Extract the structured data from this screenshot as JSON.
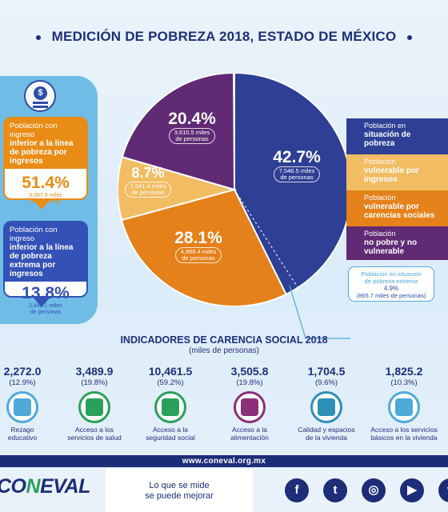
{
  "title": "MEDICIÓN DE POBREZA 2018, ESTADO DE MÉXICO",
  "left_cards": [
    {
      "label_pre": "Población con ingreso",
      "label_bold": "inferior a la línea de pobreza por ingresos",
      "pct": "51.4%",
      "sub1": "9,087.9 miles",
      "sub2": "de personas",
      "color": "#e98c16"
    },
    {
      "label_pre": "Población con ingreso",
      "label_bold": "inferior a la línea de pobreza extrema por ingresos",
      "pct": "13.8%",
      "sub1": "2,443.1 miles",
      "sub2": "de personas",
      "color": "#3451b7"
    }
  ],
  "pie": {
    "slices": [
      {
        "pct": "42.7%",
        "value": 42.7,
        "sub1": "7,546.5 miles",
        "sub2": "de personas",
        "color": "#2e3f95"
      },
      {
        "pct": "28.1%",
        "value": 28.1,
        "sub1": "4,968.4 miles",
        "sub2": "de personas",
        "color": "#e5811a"
      },
      {
        "pct": "8.7%",
        "value": 8.7,
        "sub1": "1,541.4 miles",
        "sub2": "de personas",
        "color": "#f2bc63"
      },
      {
        "pct": "20.4%",
        "value": 20.4,
        "sub1": "3,610.5 miles",
        "sub2": "de personas",
        "color": "#602a74"
      }
    ]
  },
  "legend": [
    {
      "pre": "Población en",
      "bold": "situación de pobreza"
    },
    {
      "pre": "Población",
      "bold": "vulnerable por ingresos"
    },
    {
      "pre": "Población",
      "bold": "vulnerable por carencias sociales"
    },
    {
      "pre": "Población",
      "bold": "no pobre y no vulnerable"
    }
  ],
  "callout": {
    "line1": "Población en situación",
    "line2": "de pobreza extrema",
    "pct": "4.9%",
    "miles": "(865.7 miles de personas)"
  },
  "indicators_title": "INDICADORES DE CARENCIA SOCIAL 2018",
  "indicators_sub": "(miles de personas)",
  "indicators": [
    {
      "value": "2,272.0",
      "pct": "(12.9%)",
      "label1": "Rezago",
      "label2": "educativo",
      "color": "#4fa9d9"
    },
    {
      "value": "3,489.9",
      "pct": "(19.8%)",
      "label1": "Acceso a los",
      "label2": "servicios de salud",
      "color": "#2aa05a"
    },
    {
      "value": "10,461.5",
      "pct": "(59.2%)",
      "label1": "Acceso a la",
      "label2": "seguridad social",
      "color": "#2aa05a"
    },
    {
      "value": "3,505.8",
      "pct": "(19.8%)",
      "label1": "Acceso a la",
      "label2": "alimentación",
      "color": "#8b2f7a"
    },
    {
      "value": "1,704.5",
      "pct": "(9.6%)",
      "label1": "Calidad y espacios",
      "label2": "de la vivienda",
      "color": "#2e8fb8"
    },
    {
      "value": "1,825.2",
      "pct": "(10.3%)",
      "label1": "Acceso a los servicios",
      "label2": "básicos en la vivienda",
      "color": "#4fa9d9"
    }
  ],
  "url": "www.coneval.org.mx",
  "brand": {
    "a": "CO",
    "n": "N",
    "b": "EVAL"
  },
  "slogan1": "Lo que se mide",
  "slogan2": "se puede mejorar",
  "social": [
    {
      "icon": "facebook-icon",
      "glyph": "f"
    },
    {
      "icon": "twitter-icon",
      "glyph": "t"
    },
    {
      "icon": "instagram-icon",
      "glyph": "◎"
    },
    {
      "icon": "youtube-icon",
      "glyph": "▶"
    },
    {
      "icon": "vimeo-icon",
      "glyph": "v"
    }
  ]
}
